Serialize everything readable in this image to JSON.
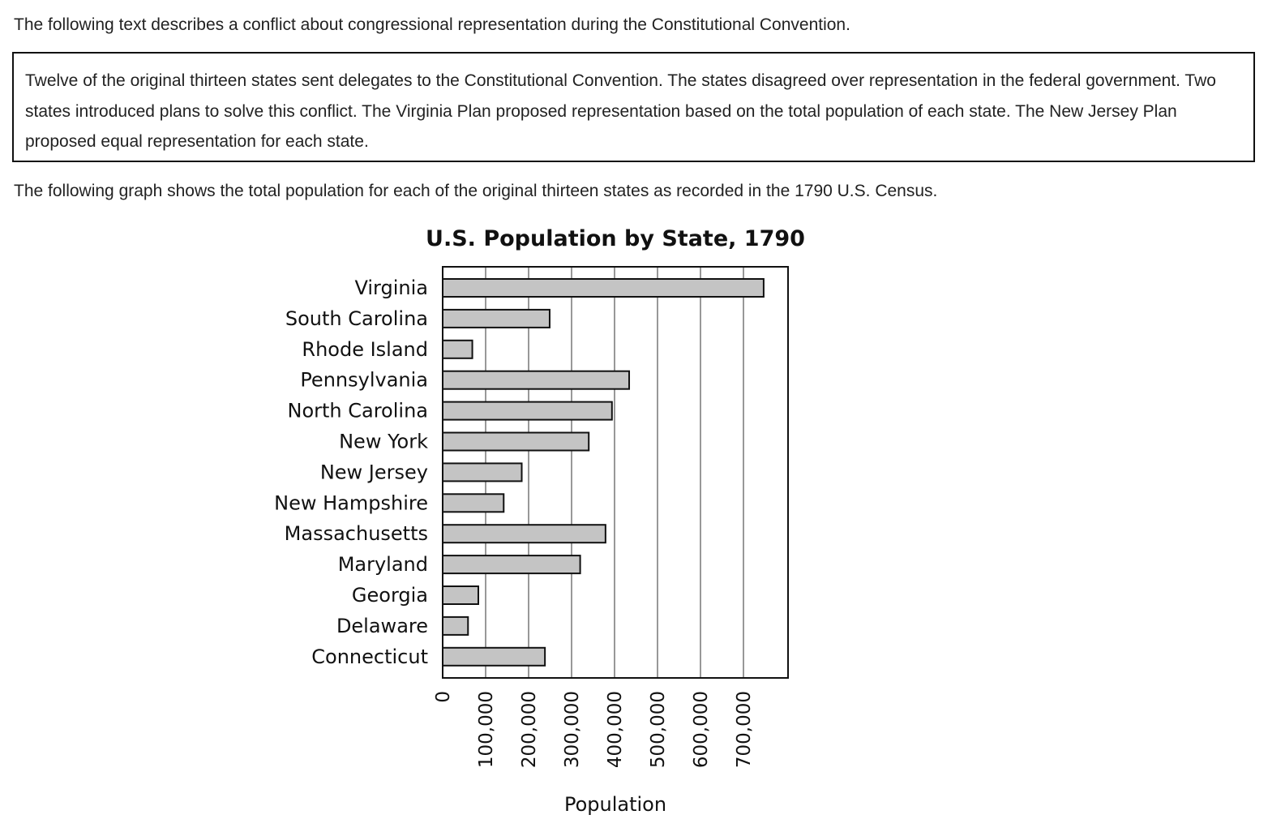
{
  "intro_text": "The following text describes a conflict about congressional representation during the Constitutional Convention.",
  "passage_text": "Twelve of the original thirteen states sent delegates to the Constitutional Convention. The states disagreed over representation in the federal government. Two states introduced plans to solve this conflict. The Virginia Plan proposed representation based on the total population of each state. The New Jersey Plan proposed equal representation for each state.",
  "graph_intro_text": "The following graph shows the total population for each of the original thirteen states as recorded in the 1790 U.S. Census.",
  "chart_data": {
    "type": "bar",
    "orientation": "horizontal",
    "title": "U.S. Population by State, 1790",
    "xlabel": "Population",
    "ylabel": "",
    "categories": [
      "Virginia",
      "South Carolina",
      "Rhode Island",
      "Pennsylvania",
      "North Carolina",
      "New York",
      "New Jersey",
      "New Hampshire",
      "Massachusetts",
      "Maryland",
      "Georgia",
      "Delaware",
      "Connecticut"
    ],
    "values": [
      747000,
      249000,
      69000,
      434000,
      394000,
      340000,
      184000,
      142000,
      379000,
      320000,
      83000,
      59000,
      238000
    ],
    "xlim": [
      0,
      800000
    ],
    "xticks": [
      0,
      100000,
      200000,
      300000,
      400000,
      500000,
      600000,
      700000
    ],
    "xtick_labels": [
      "0",
      "100,000",
      "200,000",
      "300,000",
      "400,000",
      "500,000",
      "600,000",
      "700,000"
    ],
    "grid": true,
    "bar_color": "#c4c4c4",
    "bar_edge_color": "#111111",
    "grid_color": "#777777"
  }
}
